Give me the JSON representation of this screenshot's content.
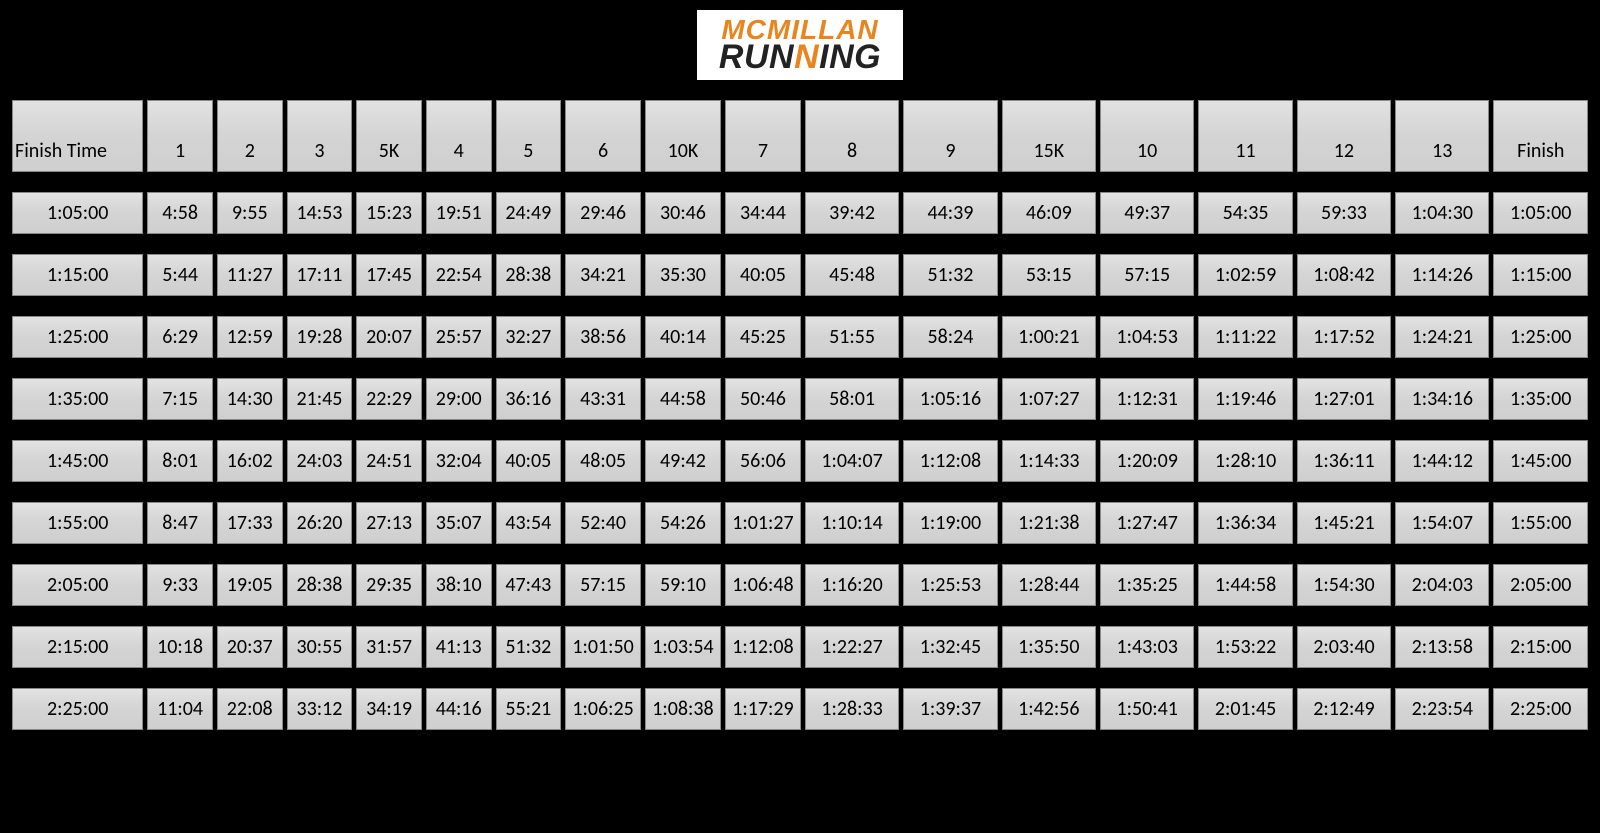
{
  "logo": {
    "top": "MCMILLAN",
    "bottom_left": "RUN",
    "bottom_n": "N",
    "bottom_right": "ING"
  },
  "table": {
    "columns": [
      "Finish Time",
      "1",
      "2",
      "3",
      "5K",
      "4",
      "5",
      "6",
      "10K",
      "7",
      "8",
      "9",
      "15K",
      "10",
      "11",
      "12",
      "13",
      "Finish"
    ],
    "col_classes": [
      "col-finishtime",
      "col-narrow",
      "col-narrow",
      "col-narrow",
      "col-narrow",
      "col-narrow",
      "col-narrow",
      "col-mid",
      "col-mid",
      "col-mid",
      "col-wide",
      "col-wide",
      "col-wide",
      "col-wide",
      "col-wide",
      "col-wide",
      "col-wide",
      "col-wide"
    ],
    "rows": [
      [
        "1:05:00",
        "4:58",
        "9:55",
        "14:53",
        "15:23",
        "19:51",
        "24:49",
        "29:46",
        "30:46",
        "34:44",
        "39:42",
        "44:39",
        "46:09",
        "49:37",
        "54:35",
        "59:33",
        "1:04:30",
        "1:05:00"
      ],
      [
        "1:15:00",
        "5:44",
        "11:27",
        "17:11",
        "17:45",
        "22:54",
        "28:38",
        "34:21",
        "35:30",
        "40:05",
        "45:48",
        "51:32",
        "53:15",
        "57:15",
        "1:02:59",
        "1:08:42",
        "1:14:26",
        "1:15:00"
      ],
      [
        "1:25:00",
        "6:29",
        "12:59",
        "19:28",
        "20:07",
        "25:57",
        "32:27",
        "38:56",
        "40:14",
        "45:25",
        "51:55",
        "58:24",
        "1:00:21",
        "1:04:53",
        "1:11:22",
        "1:17:52",
        "1:24:21",
        "1:25:00"
      ],
      [
        "1:35:00",
        "7:15",
        "14:30",
        "21:45",
        "22:29",
        "29:00",
        "36:16",
        "43:31",
        "44:58",
        "50:46",
        "58:01",
        "1:05:16",
        "1:07:27",
        "1:12:31",
        "1:19:46",
        "1:27:01",
        "1:34:16",
        "1:35:00"
      ],
      [
        "1:45:00",
        "8:01",
        "16:02",
        "24:03",
        "24:51",
        "32:04",
        "40:05",
        "48:05",
        "49:42",
        "56:06",
        "1:04:07",
        "1:12:08",
        "1:14:33",
        "1:20:09",
        "1:28:10",
        "1:36:11",
        "1:44:12",
        "1:45:00"
      ],
      [
        "1:55:00",
        "8:47",
        "17:33",
        "26:20",
        "27:13",
        "35:07",
        "43:54",
        "52:40",
        "54:26",
        "1:01:27",
        "1:10:14",
        "1:19:00",
        "1:21:38",
        "1:27:47",
        "1:36:34",
        "1:45:21",
        "1:54:07",
        "1:55:00"
      ],
      [
        "2:05:00",
        "9:33",
        "19:05",
        "28:38",
        "29:35",
        "38:10",
        "47:43",
        "57:15",
        "59:10",
        "1:06:48",
        "1:16:20",
        "1:25:53",
        "1:28:44",
        "1:35:25",
        "1:44:58",
        "1:54:30",
        "2:04:03",
        "2:05:00"
      ],
      [
        "2:15:00",
        "10:18",
        "20:37",
        "30:55",
        "31:57",
        "41:13",
        "51:32",
        "1:01:50",
        "1:03:54",
        "1:12:08",
        "1:22:27",
        "1:32:45",
        "1:35:50",
        "1:43:03",
        "1:53:22",
        "2:03:40",
        "2:13:58",
        "2:15:00"
      ],
      [
        "2:25:00",
        "11:04",
        "22:08",
        "33:12",
        "34:19",
        "44:16",
        "55:21",
        "1:06:25",
        "1:08:38",
        "1:17:29",
        "1:28:33",
        "1:39:37",
        "1:42:56",
        "1:50:41",
        "2:01:45",
        "2:12:49",
        "2:23:54",
        "2:25:00"
      ]
    ]
  },
  "style": {
    "background": "#000000",
    "cell_bg_top": "#e2e2e2",
    "cell_bg_bottom": "#cfcfcf",
    "cell_border": "#888888",
    "font_size_cell": 20,
    "logo_orange": "#e8851e",
    "logo_dark": "#222222"
  }
}
